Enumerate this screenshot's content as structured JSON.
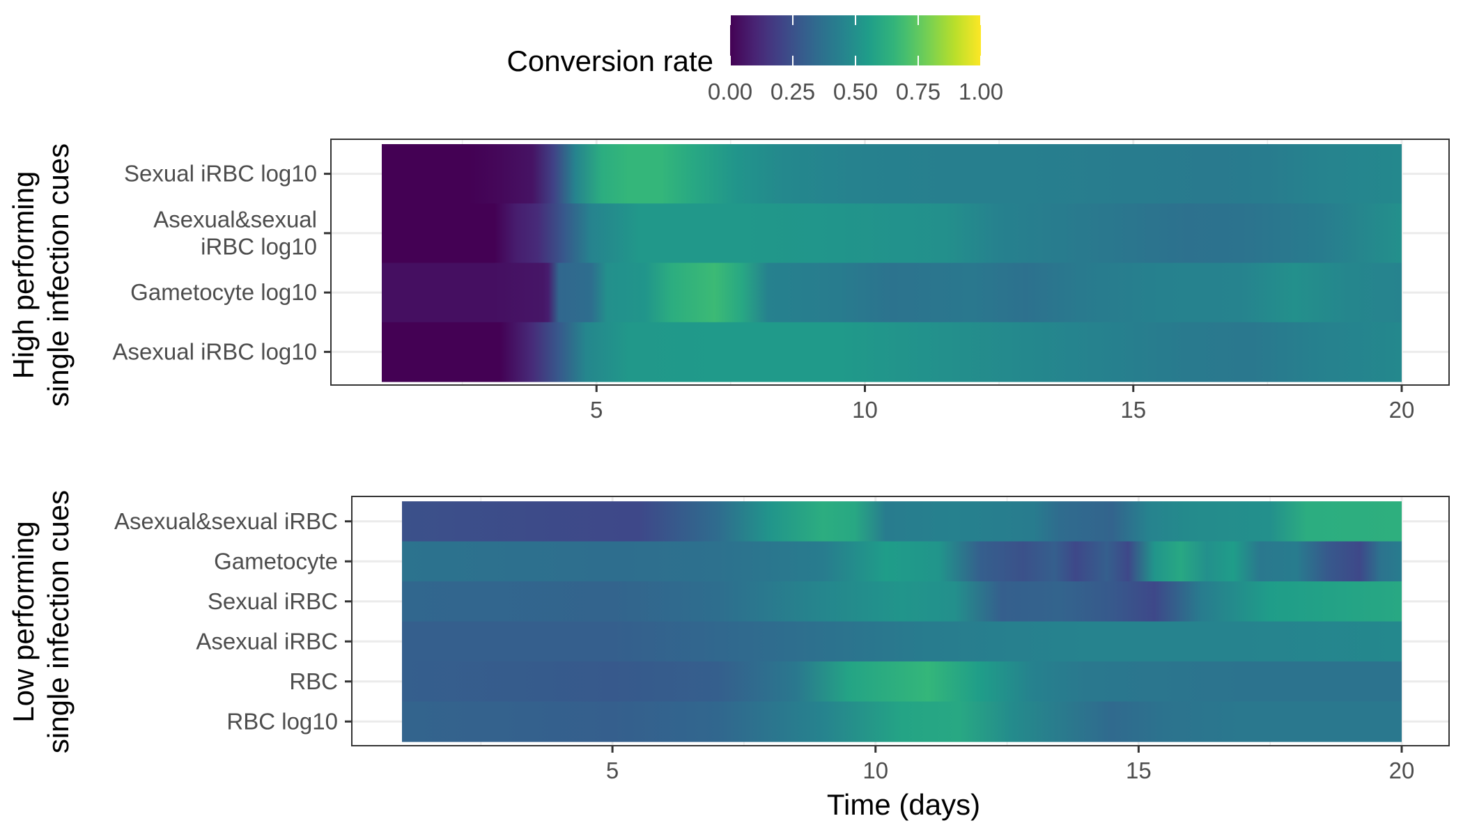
{
  "chart_data": {
    "type": "heatmap",
    "legend": {
      "title": "Conversion rate",
      "ticks": [
        "0.00",
        "0.25",
        "0.50",
        "0.75",
        "1.00"
      ],
      "tick_values": [
        0,
        0.25,
        0.5,
        0.75,
        1.0
      ],
      "range": [
        0,
        1
      ],
      "colormap": "viridis",
      "position": "top"
    },
    "x_axis": {
      "title": "Time (days)",
      "range": [
        0,
        20
      ],
      "ticks": [
        "5",
        "10",
        "15",
        "20"
      ],
      "tick_values": [
        5,
        10,
        15,
        20
      ]
    },
    "panels": [
      {
        "ylabel": [
          "High performing",
          "single infection cues"
        ],
        "x_start": 1,
        "x_end": 20,
        "rows": [
          {
            "label": [
              "Sexual iRBC log10"
            ],
            "knots": [
              [
                1,
                0.0
              ],
              [
                2.6,
                0.0
              ],
              [
                3.2,
                0.02
              ],
              [
                3.8,
                0.05
              ],
              [
                4.2,
                0.2
              ],
              [
                4.6,
                0.45
              ],
              [
                5.1,
                0.62
              ],
              [
                5.6,
                0.66
              ],
              [
                6.2,
                0.66
              ],
              [
                6.8,
                0.6
              ],
              [
                7.6,
                0.52
              ],
              [
                8.5,
                0.47
              ],
              [
                10,
                0.44
              ],
              [
                11.5,
                0.43
              ],
              [
                13,
                0.43
              ],
              [
                15,
                0.42
              ],
              [
                16.5,
                0.41
              ],
              [
                17.5,
                0.42
              ],
              [
                18.5,
                0.45
              ],
              [
                20,
                0.47
              ]
            ]
          },
          {
            "label": [
              "Asexual&sexual",
              "iRBC log10"
            ],
            "knots": [
              [
                1,
                0.0
              ],
              [
                3.1,
                0.0
              ],
              [
                3.5,
                0.08
              ],
              [
                3.9,
                0.12
              ],
              [
                4.4,
                0.28
              ],
              [
                4.9,
                0.45
              ],
              [
                5.8,
                0.53
              ],
              [
                7.5,
                0.53
              ],
              [
                9.5,
                0.52
              ],
              [
                11.5,
                0.5
              ],
              [
                12.5,
                0.44
              ],
              [
                14.5,
                0.4
              ],
              [
                16,
                0.37
              ],
              [
                17,
                0.38
              ],
              [
                18.5,
                0.42
              ],
              [
                20,
                0.5
              ]
            ]
          },
          {
            "label": [
              "Gametocyte log10"
            ],
            "knots": [
              [
                1,
                0.04
              ],
              [
                3.1,
                0.04
              ],
              [
                4.0,
                0.06
              ],
              [
                4.1,
                0.08
              ],
              [
                4.3,
                0.33
              ],
              [
                4.9,
                0.36
              ],
              [
                5.2,
                0.5
              ],
              [
                5.9,
                0.52
              ],
              [
                6.4,
                0.62
              ],
              [
                7.2,
                0.68
              ],
              [
                7.7,
                0.6
              ],
              [
                8.2,
                0.44
              ],
              [
                9.5,
                0.42
              ],
              [
                10.5,
                0.38
              ],
              [
                12,
                0.4
              ],
              [
                13,
                0.37
              ],
              [
                14,
                0.41
              ],
              [
                15.5,
                0.44
              ],
              [
                17,
                0.45
              ],
              [
                18,
                0.5
              ],
              [
                19,
                0.46
              ],
              [
                20,
                0.45
              ]
            ]
          },
          {
            "label": [
              "Asexual iRBC log10"
            ],
            "knots": [
              [
                1,
                0.0
              ],
              [
                3.2,
                0.0
              ],
              [
                3.8,
                0.12
              ],
              [
                4.3,
                0.28
              ],
              [
                4.8,
                0.46
              ],
              [
                5.6,
                0.53
              ],
              [
                7.5,
                0.54
              ],
              [
                9.5,
                0.54
              ],
              [
                11.5,
                0.5
              ],
              [
                13,
                0.47
              ],
              [
                14.5,
                0.44
              ],
              [
                16,
                0.41
              ],
              [
                17.2,
                0.4
              ],
              [
                18.5,
                0.44
              ],
              [
                20,
                0.47
              ]
            ]
          }
        ]
      },
      {
        "ylabel": [
          "Low performing",
          "single infection cues"
        ],
        "x_start": 1,
        "x_end": 20,
        "rows": [
          {
            "label": [
              "Asexual&sexual iRBC"
            ],
            "knots": [
              [
                1,
                0.25
              ],
              [
                3.5,
                0.23
              ],
              [
                5.5,
                0.22
              ],
              [
                7,
                0.35
              ],
              [
                8,
                0.52
              ],
              [
                9,
                0.62
              ],
              [
                9.6,
                0.6
              ],
              [
                10.2,
                0.42
              ],
              [
                11.5,
                0.44
              ],
              [
                13,
                0.42
              ],
              [
                13.5,
                0.35
              ],
              [
                14.5,
                0.32
              ],
              [
                15.2,
                0.45
              ],
              [
                16,
                0.48
              ],
              [
                17.5,
                0.5
              ],
              [
                18.2,
                0.62
              ],
              [
                20,
                0.63
              ]
            ]
          },
          {
            "label": [
              "Gametocyte"
            ],
            "knots": [
              [
                1,
                0.38
              ],
              [
                5,
                0.36
              ],
              [
                7,
                0.37
              ],
              [
                9,
                0.42
              ],
              [
                10.2,
                0.55
              ],
              [
                11.2,
                0.52
              ],
              [
                12,
                0.3
              ],
              [
                12.8,
                0.25
              ],
              [
                13.4,
                0.3
              ],
              [
                13.8,
                0.22
              ],
              [
                14.4,
                0.3
              ],
              [
                14.8,
                0.22
              ],
              [
                15.3,
                0.52
              ],
              [
                15.8,
                0.6
              ],
              [
                16.3,
                0.5
              ],
              [
                16.8,
                0.55
              ],
              [
                17.3,
                0.4
              ],
              [
                18,
                0.42
              ],
              [
                18.6,
                0.28
              ],
              [
                19.2,
                0.22
              ],
              [
                19.6,
                0.38
              ],
              [
                20,
                0.42
              ]
            ]
          },
          {
            "label": [
              "Sexual iRBC"
            ],
            "knots": [
              [
                1,
                0.33
              ],
              [
                5,
                0.32
              ],
              [
                7,
                0.36
              ],
              [
                9,
                0.46
              ],
              [
                10.5,
                0.52
              ],
              [
                11.5,
                0.5
              ],
              [
                12.4,
                0.3
              ],
              [
                13.5,
                0.32
              ],
              [
                14.5,
                0.28
              ],
              [
                15.3,
                0.22
              ],
              [
                16.2,
                0.42
              ],
              [
                17.5,
                0.55
              ],
              [
                20,
                0.6
              ]
            ]
          },
          {
            "label": [
              "Asexual iRBC"
            ],
            "knots": [
              [
                1,
                0.3
              ],
              [
                5,
                0.3
              ],
              [
                8,
                0.35
              ],
              [
                11,
                0.42
              ],
              [
                14,
                0.45
              ],
              [
                17,
                0.45
              ],
              [
                20,
                0.47
              ]
            ]
          },
          {
            "label": [
              "RBC"
            ],
            "knots": [
              [
                1,
                0.3
              ],
              [
                5,
                0.28
              ],
              [
                7,
                0.3
              ],
              [
                8.5,
                0.4
              ],
              [
                9.5,
                0.58
              ],
              [
                11,
                0.66
              ],
              [
                12,
                0.55
              ],
              [
                13,
                0.44
              ],
              [
                14,
                0.4
              ],
              [
                17,
                0.38
              ],
              [
                20,
                0.38
              ]
            ]
          },
          {
            "label": [
              "RBC log10"
            ],
            "knots": [
              [
                1,
                0.32
              ],
              [
                5,
                0.3
              ],
              [
                7,
                0.33
              ],
              [
                9,
                0.45
              ],
              [
                10.5,
                0.58
              ],
              [
                11.6,
                0.6
              ],
              [
                12.6,
                0.48
              ],
              [
                14.5,
                0.34
              ],
              [
                15.5,
                0.38
              ],
              [
                17,
                0.4
              ],
              [
                20,
                0.4
              ]
            ]
          }
        ]
      }
    ]
  }
}
